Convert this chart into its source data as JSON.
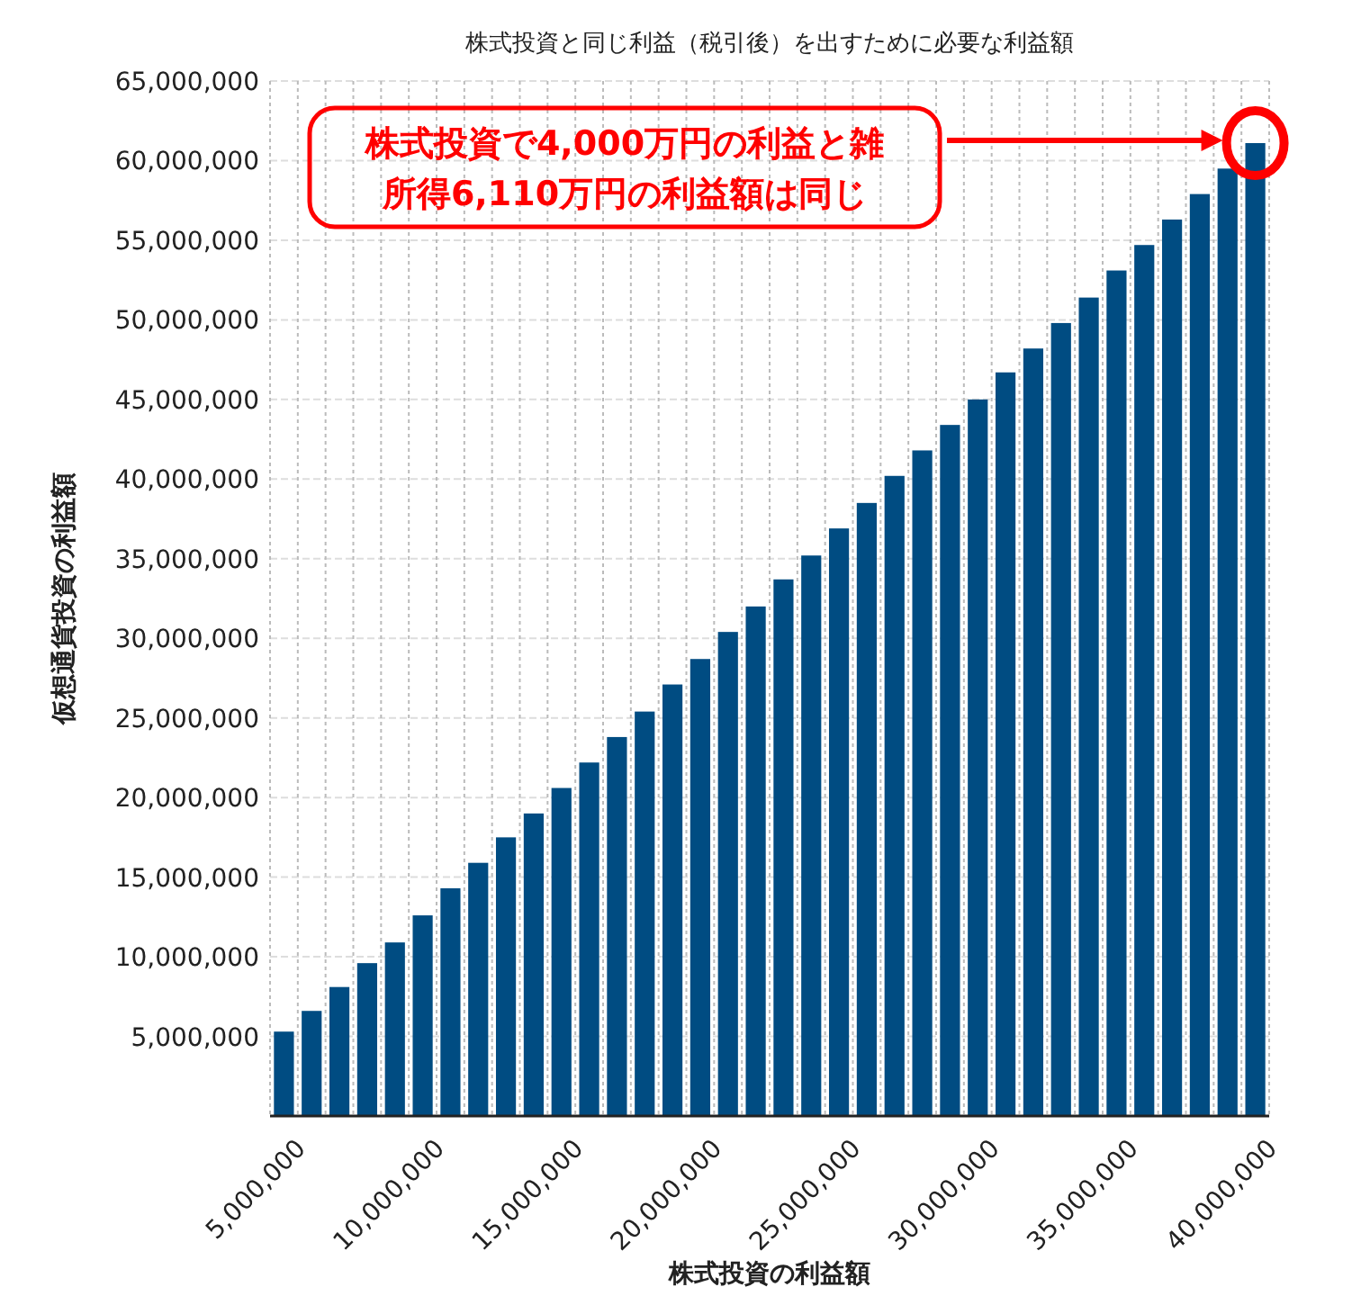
{
  "chart_data": {
    "type": "bar",
    "title": "株式投資と同じ利益（税引後）を出すために必要な利益額",
    "xlabel": "株式投資の利益額",
    "ylabel": "仮想通貨投資の利益額",
    "categories": [
      "5,000,000",
      null,
      null,
      null,
      null,
      "10,000,000",
      null,
      null,
      null,
      null,
      "15,000,000",
      null,
      null,
      null,
      null,
      "20,000,000",
      null,
      null,
      null,
      null,
      "25,000,000",
      null,
      null,
      null,
      null,
      "30,000,000",
      null,
      null,
      null,
      null,
      "35,000,000",
      null,
      null,
      null,
      null,
      "40,000,000"
    ],
    "values": [
      5300000,
      6600000,
      8100000,
      9600000,
      10900000,
      12600000,
      14300000,
      15900000,
      17500000,
      19000000,
      20600000,
      22200000,
      23800000,
      25400000,
      27100000,
      28700000,
      30400000,
      32000000,
      33700000,
      35200000,
      36900000,
      38500000,
      40200000,
      41800000,
      43400000,
      45000000,
      46700000,
      48200000,
      49800000,
      51400000,
      53100000,
      54700000,
      56300000,
      57900000,
      59500000,
      61100000
    ],
    "color": "#004c82",
    "ylim": [
      0,
      65000000
    ],
    "yticks": [
      {
        "value": 5000000,
        "label": "5,000,000"
      },
      {
        "value": 10000000,
        "label": "10,000,000"
      },
      {
        "value": 15000000,
        "label": "15,000,000"
      },
      {
        "value": 20000000,
        "label": "20,000,000"
      },
      {
        "value": 25000000,
        "label": "25,000,000"
      },
      {
        "value": 30000000,
        "label": "30,000,000"
      },
      {
        "value": 35000000,
        "label": "35,000,000"
      },
      {
        "value": 40000000,
        "label": "40,000,000"
      },
      {
        "value": 45000000,
        "label": "45,000,000"
      },
      {
        "value": 50000000,
        "label": "50,000,000"
      },
      {
        "value": 55000000,
        "label": "55,000,000"
      },
      {
        "value": 60000000,
        "label": "60,000,000"
      },
      {
        "value": 65000000,
        "label": "65,000,000"
      }
    ],
    "grid": true,
    "annotations": [
      "株式投資で4,000万円の利益と雑所得6,110万円の利益額は同じ"
    ]
  }
}
